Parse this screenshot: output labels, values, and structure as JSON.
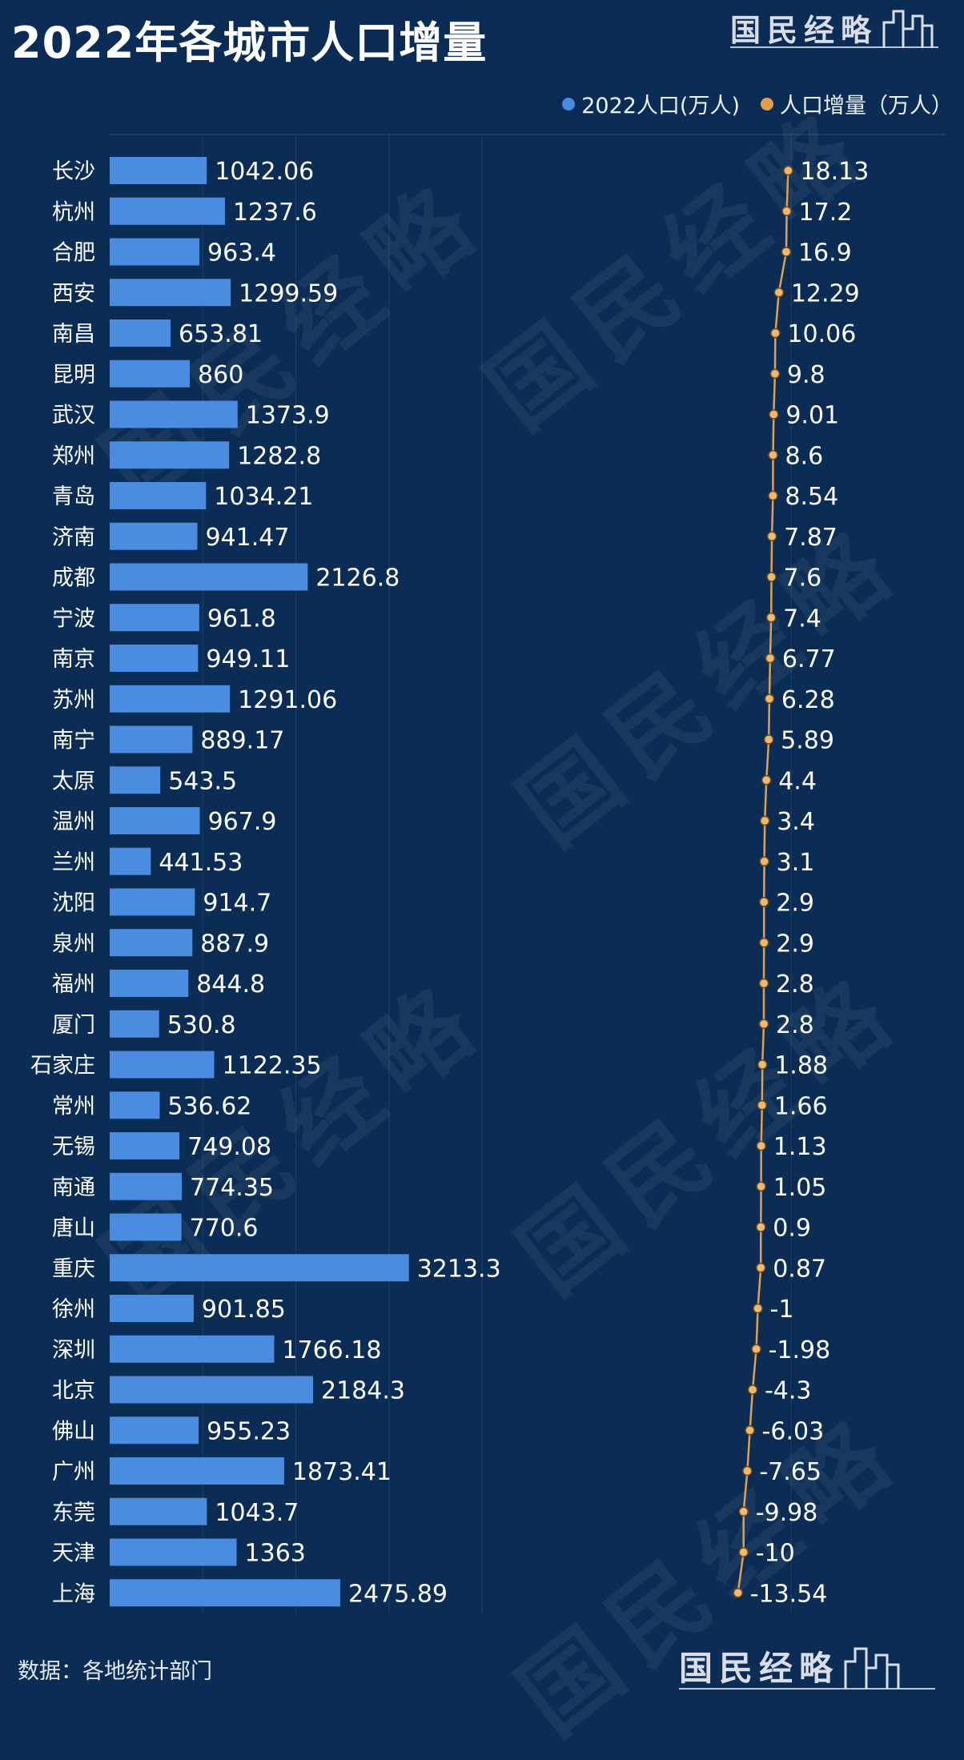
{
  "title": "2022年各城市人口增量",
  "brand": "国民经略",
  "source": "数据：各地统计部门",
  "colors": {
    "background": "#0b2d55",
    "bar": "#4a8de0",
    "line": "#e0a050",
    "dot_fill": "#f1b970",
    "dot_stroke": "#6b4a1a"
  },
  "chart_data": {
    "type": "bar",
    "orientation": "horizontal",
    "categories": [
      "长沙",
      "杭州",
      "合肥",
      "西安",
      "南昌",
      "昆明",
      "武汉",
      "郑州",
      "青岛",
      "济南",
      "成都",
      "宁波",
      "南京",
      "苏州",
      "南宁",
      "太原",
      "温州",
      "兰州",
      "沈阳",
      "泉州",
      "福州",
      "厦门",
      "石家庄",
      "常州",
      "无锡",
      "南通",
      "唐山",
      "重庆",
      "徐州",
      "深圳",
      "北京",
      "佛山",
      "广州",
      "东莞",
      "天津",
      "上海"
    ],
    "series": [
      {
        "name": "2022人口(万人)",
        "type": "bar",
        "values": [
          1042.06,
          1237.6,
          963.4,
          1299.59,
          653.81,
          860,
          1373.9,
          1282.8,
          1034.21,
          941.47,
          2126.8,
          961.8,
          949.11,
          1291.06,
          889.17,
          543.5,
          967.9,
          441.53,
          914.7,
          887.9,
          844.8,
          530.8,
          1122.35,
          536.62,
          749.08,
          774.35,
          770.6,
          3213.3,
          901.85,
          1766.18,
          2184.3,
          955.23,
          1873.41,
          1043.7,
          1363,
          2475.89
        ],
        "labels": [
          "1042.06",
          "1237.6",
          "963.4",
          "1299.59",
          "653.81",
          "860",
          "1373.9",
          "1282.8",
          "1034.21",
          "941.47",
          "2126.8",
          "961.8",
          "949.11",
          "1291.06",
          "889.17",
          "543.5",
          "967.9",
          "441.53",
          "914.7",
          "887.9",
          "844.8",
          "530.8",
          "1122.35",
          "536.62",
          "749.08",
          "774.35",
          "770.6",
          "3213.3",
          "901.85",
          "1766.18",
          "2184.3",
          "955.23",
          "1873.41",
          "1043.7",
          "1363",
          "2475.89"
        ]
      },
      {
        "name": "人口增量（万人）",
        "type": "line",
        "values": [
          18.13,
          17.2,
          16.9,
          12.29,
          10.06,
          9.8,
          9.01,
          8.6,
          8.54,
          7.87,
          7.6,
          7.4,
          6.77,
          6.28,
          5.89,
          4.4,
          3.4,
          3.1,
          2.9,
          2.9,
          2.8,
          2.8,
          1.88,
          1.66,
          1.13,
          1.05,
          0.9,
          0.87,
          -1,
          -1.98,
          -4.3,
          -6.03,
          -7.65,
          -9.98,
          -10,
          -13.54
        ],
        "labels": [
          "18.13",
          "17.2",
          "16.9",
          "12.29",
          "10.06",
          "9.8",
          "9.01",
          "8.6",
          "8.54",
          "7.87",
          "7.6",
          "7.4",
          "6.77",
          "6.28",
          "5.89",
          "4.4",
          "3.4",
          "3.1",
          "2.9",
          "2.9",
          "2.8",
          "2.8",
          "1.88",
          "1.66",
          "1.13",
          "1.05",
          "0.9",
          "0.87",
          "-1",
          "-1.98",
          "-4.3",
          "-6.03",
          "-7.65",
          "-9.98",
          "-10",
          "-13.54"
        ]
      }
    ],
    "legend_position": "top-right",
    "bar_xlim": [
      0,
      4000
    ],
    "line_xlim": [
      -80,
      25
    ],
    "grid": true
  }
}
